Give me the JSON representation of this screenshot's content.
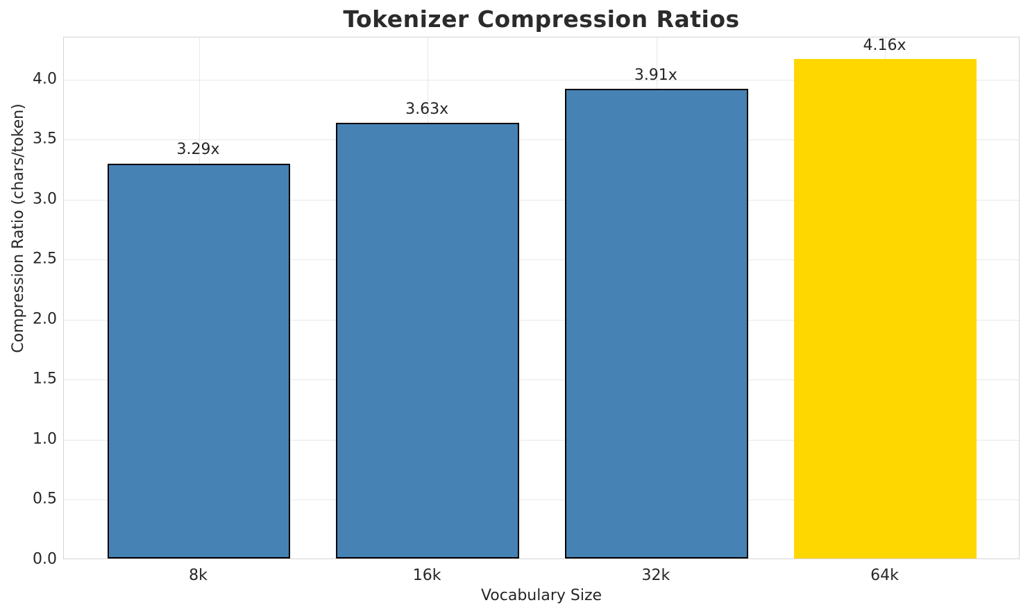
{
  "chart_data": {
    "type": "bar",
    "title": "Tokenizer Compression Ratios",
    "xlabel": "Vocabulary Size",
    "ylabel": "Compression Ratio (chars/token)",
    "categories": [
      "8k",
      "16k",
      "32k",
      "64k"
    ],
    "values": [
      3.29,
      3.63,
      3.91,
      4.16
    ],
    "bar_labels": [
      "3.29x",
      "3.63x",
      "3.91x",
      "4.16x"
    ],
    "bar_colors": [
      "#4682B4",
      "#4682B4",
      "#4682B4",
      "#FFD700"
    ],
    "bar_edge_colors": [
      "#000000",
      "#000000",
      "#000000",
      "none"
    ],
    "highlight_category": "64k",
    "yticks": [
      0.0,
      0.5,
      1.0,
      1.5,
      2.0,
      2.5,
      3.0,
      3.5,
      4.0
    ],
    "ytick_labels": [
      "0.0",
      "0.5",
      "1.0",
      "1.5",
      "2.0",
      "2.5",
      "3.0",
      "3.5",
      "4.0"
    ],
    "ylim": [
      0,
      4.35
    ],
    "bar_width_ratio": 0.8,
    "x_margin_units": 0.59,
    "grid": true,
    "legend": false,
    "colors": {
      "background": "#ffffff",
      "grid": "#e7e7e7",
      "spine": "#d4d4d4",
      "text": "#262626",
      "title": "#2b2b2b",
      "bar_primary": "#4682B4",
      "bar_highlight": "#FFD700"
    }
  }
}
